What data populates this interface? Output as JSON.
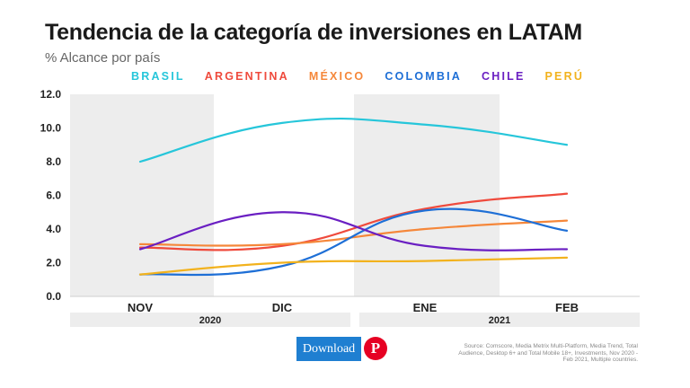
{
  "header": {
    "title": "Tendencia de la categoría de inversiones en LATAM",
    "subtitle": "% Alcance por país"
  },
  "chart_data": {
    "type": "line",
    "title": "Tendencia de la categoría de inversiones en LATAM",
    "subtitle": "% Alcance por país",
    "categories": [
      "NOV",
      "DIC",
      "ENE",
      "FEB"
    ],
    "year_groups": [
      {
        "label": "2020",
        "categories": [
          "NOV",
          "DIC"
        ]
      },
      {
        "label": "2021",
        "categories": [
          "ENE",
          "FEB"
        ]
      }
    ],
    "y_ticks": [
      "0.0",
      "2.0",
      "4.0",
      "6.0",
      "8.0",
      "10.0",
      "12.0"
    ],
    "ylim": [
      0,
      12
    ],
    "legend_position": "top",
    "series": [
      {
        "name": "BRASIL",
        "color": "#26c6da",
        "values": [
          8.0,
          10.3,
          10.2,
          9.0
        ]
      },
      {
        "name": "ARGENTINA",
        "color": "#ef4a3c",
        "values": [
          2.9,
          3.0,
          5.2,
          6.1
        ]
      },
      {
        "name": "MÉXICO",
        "color": "#f5873a",
        "values": [
          3.1,
          3.1,
          4.0,
          4.5
        ]
      },
      {
        "name": "COLOMBIA",
        "color": "#1e6fd6",
        "values": [
          1.3,
          1.8,
          5.1,
          3.9
        ]
      },
      {
        "name": "CHILE",
        "color": "#6a1fc2",
        "values": [
          2.8,
          5.0,
          3.0,
          2.8
        ]
      },
      {
        "name": "PERÚ",
        "color": "#f2b21d",
        "values": [
          1.3,
          2.0,
          2.1,
          2.3
        ]
      }
    ]
  },
  "actions": {
    "download_label": "Download",
    "pinterest_label": "P"
  },
  "source": "Source: Comscore, Media Metrix Multi-Platform, Media Trend, Total Audience, Desktop 6+ and Total Mobile 18+, Investments, Nov 2020 - Feb 2021, Multiple countries."
}
